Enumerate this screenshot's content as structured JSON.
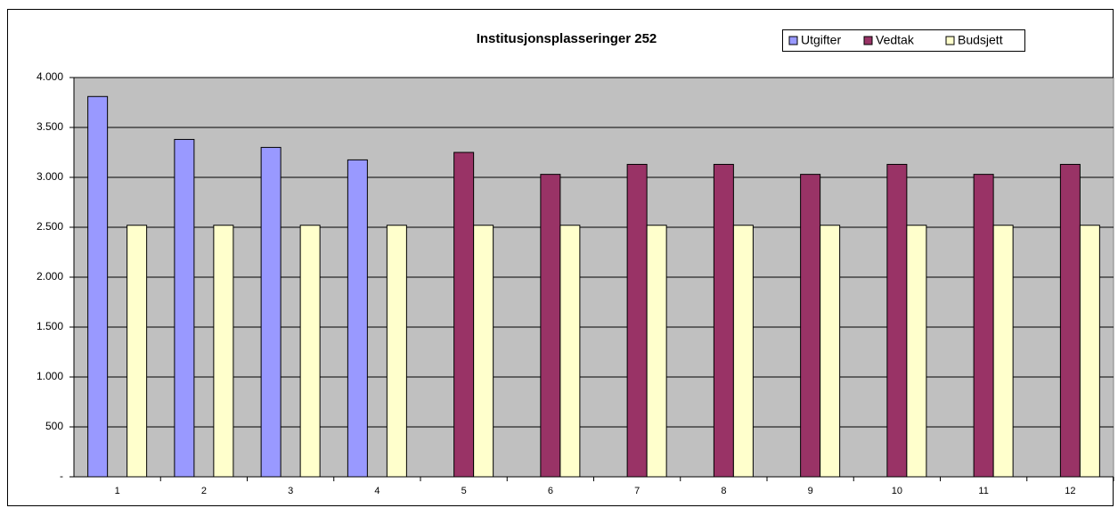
{
  "chart_data": {
    "type": "bar",
    "title": "Institusjonsplasseringer 252",
    "categories": [
      "1",
      "2",
      "3",
      "4",
      "5",
      "6",
      "7",
      "8",
      "9",
      "10",
      "11",
      "12"
    ],
    "series": [
      {
        "name": "Utgifter",
        "color": "#9999ff",
        "values": [
          3810,
          3380,
          3300,
          3175,
          null,
          null,
          null,
          null,
          null,
          null,
          null,
          null
        ]
      },
      {
        "name": "Vedtak",
        "color": "#993366",
        "values": [
          null,
          null,
          null,
          null,
          3250,
          3030,
          3130,
          3130,
          3030,
          3130,
          3030,
          3130
        ]
      },
      {
        "name": "Budsjett",
        "color": "#ffffcc",
        "values": [
          2520,
          2520,
          2520,
          2520,
          2520,
          2520,
          2520,
          2520,
          2520,
          2520,
          2520,
          2520
        ]
      }
    ],
    "ylim": [
      0,
      4000
    ],
    "yticks": [
      {
        "value": 0,
        "label": "-"
      },
      500,
      {
        "value": 1000,
        "label": "1.000"
      },
      {
        "value": 1500,
        "label": "1.500"
      },
      {
        "value": 2000,
        "label": "2.000"
      },
      {
        "value": 2500,
        "label": "2.500"
      },
      {
        "value": 3000,
        "label": "3.000"
      },
      {
        "value": 3500,
        "label": "3.500"
      },
      {
        "value": 4000,
        "label": "4.000"
      }
    ],
    "grid": true,
    "legend": "top-right",
    "plot_background": "#c0c0c0"
  }
}
